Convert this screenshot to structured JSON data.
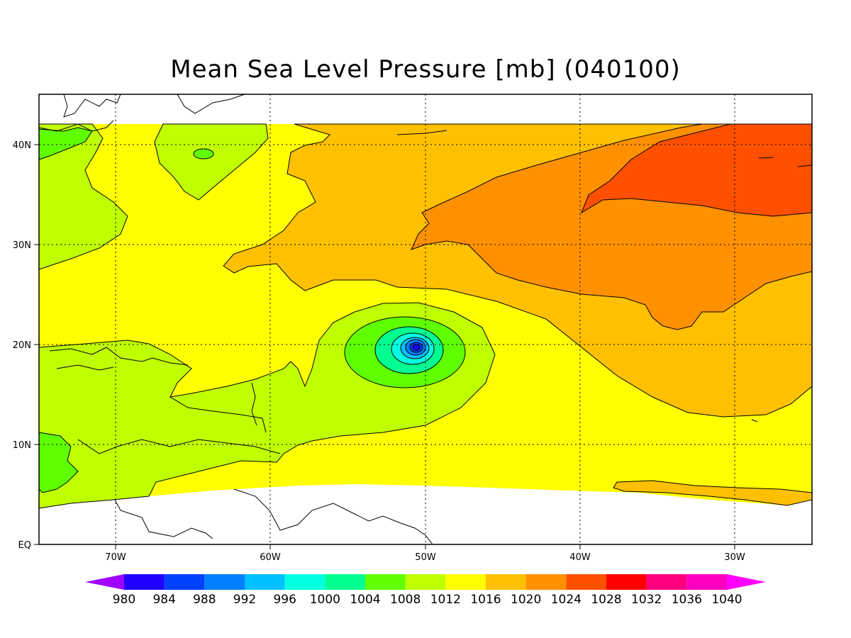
{
  "title": "Mean Sea Level Pressure [mb] (040100)",
  "lon_labels": [
    "70W",
    "60W",
    "50W",
    "40W",
    "30W"
  ],
  "lat_labels": [
    "EQ",
    "10N",
    "20N",
    "30N",
    "40N"
  ],
  "colorbar": {
    "levels": [
      "980",
      "984",
      "988",
      "992",
      "996",
      "1000",
      "1004",
      "1008",
      "1012",
      "1016",
      "1020",
      "1024",
      "1028",
      "1032",
      "1036",
      "1040"
    ],
    "colors": [
      "#a000ff",
      "#2000ff",
      "#0040ff",
      "#0080ff",
      "#00c0ff",
      "#00ffe0",
      "#00ff90",
      "#60ff00",
      "#c0ff00",
      "#ffff00",
      "#ffc000",
      "#ff9000",
      "#ff5000",
      "#ff0000",
      "#ff0080",
      "#ff00c0",
      "#ff00ff"
    ]
  },
  "map_data": {
    "variable": "Mean Sea Level Pressure",
    "units": "mb",
    "lon_range": [
      -75,
      -25
    ],
    "lat_range": [
      0,
      45
    ],
    "low_center": {
      "lon": -50.6,
      "lat": 19.7
    }
  }
}
